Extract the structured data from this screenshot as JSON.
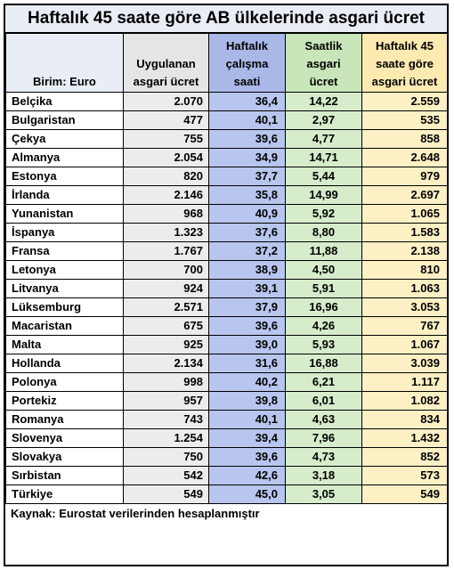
{
  "title": "Haftalık 45 saate göre AB ülkelerinde asgari ücret",
  "headers": {
    "unit": "Birim: Euro",
    "applied_wage": [
      "Uygulanan",
      "asgari ücret"
    ],
    "weekly_hours": [
      "Haftalık",
      "çalışma",
      "saati"
    ],
    "hourly_wage": [
      "Saatlik",
      "asgari",
      "ücret"
    ],
    "wage_45h": [
      "Haftalık 45",
      "saate göre",
      "asgari ücret"
    ]
  },
  "rows": [
    [
      "Belçika",
      "2.070",
      "36,4",
      "14,22",
      "2.559"
    ],
    [
      "Bulgaristan",
      "477",
      "40,1",
      "2,97",
      "535"
    ],
    [
      "Çekya",
      "755",
      "39,6",
      "4,77",
      "858"
    ],
    [
      "Almanya",
      "2.054",
      "34,9",
      "14,71",
      "2.648"
    ],
    [
      "Estonya",
      "820",
      "37,7",
      "5,44",
      "979"
    ],
    [
      "İrlanda",
      "2.146",
      "35,8",
      "14,99",
      "2.697"
    ],
    [
      "Yunanistan",
      "968",
      "40,9",
      "5,92",
      "1.065"
    ],
    [
      "İspanya",
      "1.323",
      "37,6",
      "8,80",
      "1.583"
    ],
    [
      "Fransa",
      "1.767",
      "37,2",
      "11,88",
      "2.138"
    ],
    [
      "Letonya",
      "700",
      "38,9",
      "4,50",
      "810"
    ],
    [
      "Litvanya",
      "924",
      "39,1",
      "5,91",
      "1.063"
    ],
    [
      "Lüksemburg",
      "2.571",
      "37,9",
      "16,96",
      "3.053"
    ],
    [
      "Macaristan",
      "675",
      "39,6",
      "4,26",
      "767"
    ],
    [
      "Malta",
      "925",
      "39,0",
      "5,93",
      "1.067"
    ],
    [
      "Hollanda",
      "2.134",
      "31,6",
      "16,88",
      "3.039"
    ],
    [
      "Polonya",
      "998",
      "40,2",
      "6,21",
      "1.117"
    ],
    [
      "Portekiz",
      "957",
      "39,8",
      "6,01",
      "1.082"
    ],
    [
      "Romanya",
      "743",
      "40,1",
      "4,63",
      "834"
    ],
    [
      "Slovenya",
      "1.254",
      "39,4",
      "7,96",
      "1.432"
    ],
    [
      "Slovakya",
      "750",
      "39,6",
      "4,73",
      "852"
    ],
    [
      "Sırbistan",
      "542",
      "42,6",
      "3,18",
      "573"
    ],
    [
      "Türkiye",
      "549",
      "45,0",
      "3,05",
      "549"
    ]
  ],
  "footer": "Kaynak: Eurostat verilerinden hesaplanmıştır"
}
